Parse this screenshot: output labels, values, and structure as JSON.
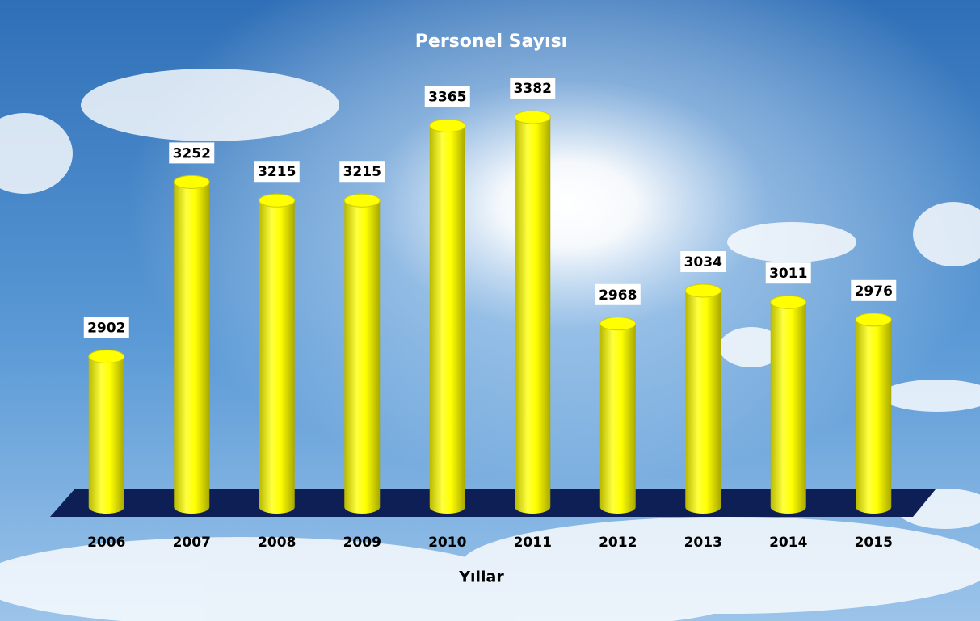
{
  "chart_data": {
    "type": "bar",
    "title": "Personel Sayısı",
    "x_label": "Yıllar",
    "categories": [
      "2006",
      "2007",
      "2008",
      "2009",
      "2010",
      "2011",
      "2012",
      "2013",
      "2014",
      "2015"
    ],
    "values": [
      2902,
      3252,
      3215,
      3215,
      3365,
      3382,
      2968,
      3034,
      3011,
      2976
    ],
    "color": "#ffff00",
    "ylim": [
      2600,
      3400
    ]
  }
}
